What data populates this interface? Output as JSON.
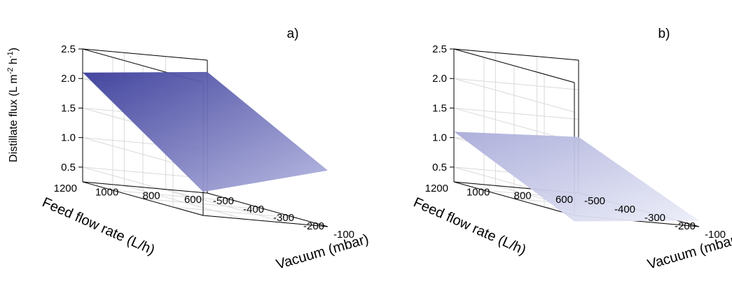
{
  "chart_data": [
    {
      "type": "surface",
      "panel_label": "a)",
      "xlabel": "Feed flow rate (L/h)",
      "ylabel": "Vacuum (mbar)",
      "zlabel": "Distillate flux (L m-2 h-1)",
      "x_ticks": [
        "600",
        "800",
        "1000",
        "1200"
      ],
      "y_ticks": [
        "-500",
        "-400",
        "-300",
        "-200",
        "-100"
      ],
      "z_ticks": [
        "0.5",
        "1.0",
        "1.5",
        "2.0",
        "2.5"
      ],
      "xlim": [
        600,
        1200
      ],
      "ylim": [
        -500,
        -100
      ],
      "zlim": [
        0.25,
        2.5
      ],
      "corner_values": [
        {
          "feed_flow_rate": 1200,
          "vacuum": -500,
          "flux": 2.1
        },
        {
          "feed_flow_rate": 1200,
          "vacuum": -100,
          "flux": 0.65
        },
        {
          "feed_flow_rate": 600,
          "vacuum": -100,
          "flux": 1.2
        },
        {
          "feed_flow_rate": 600,
          "vacuum": -500,
          "flux": 2.3
        }
      ],
      "color_high": "#3a3c9a",
      "color_low": "#b4b6e0"
    },
    {
      "type": "surface",
      "panel_label": "b)",
      "xlabel": "Feed flow rate (L/h)",
      "ylabel": "Vacuum (mbar)",
      "zlabel": "",
      "x_ticks": [
        "600",
        "800",
        "1000",
        "1200"
      ],
      "y_ticks": [
        "-500",
        "-400",
        "-300",
        "-200",
        "-100"
      ],
      "z_ticks": [
        "0.5",
        "1.0",
        "1.5",
        "2.0",
        "2.5"
      ],
      "xlim": [
        600,
        1200
      ],
      "ylim": [
        -500,
        -100
      ],
      "zlim": [
        0.25,
        2.5
      ],
      "corner_values": [
        {
          "feed_flow_rate": 1200,
          "vacuum": -500,
          "flux": 1.1
        },
        {
          "feed_flow_rate": 1200,
          "vacuum": -100,
          "flux": 0.15
        },
        {
          "feed_flow_rate": 600,
          "vacuum": -100,
          "flux": 0.35
        },
        {
          "feed_flow_rate": 600,
          "vacuum": -500,
          "flux": 1.2
        }
      ],
      "color_high": "#a9abd9",
      "color_low": "#eceef9"
    }
  ]
}
